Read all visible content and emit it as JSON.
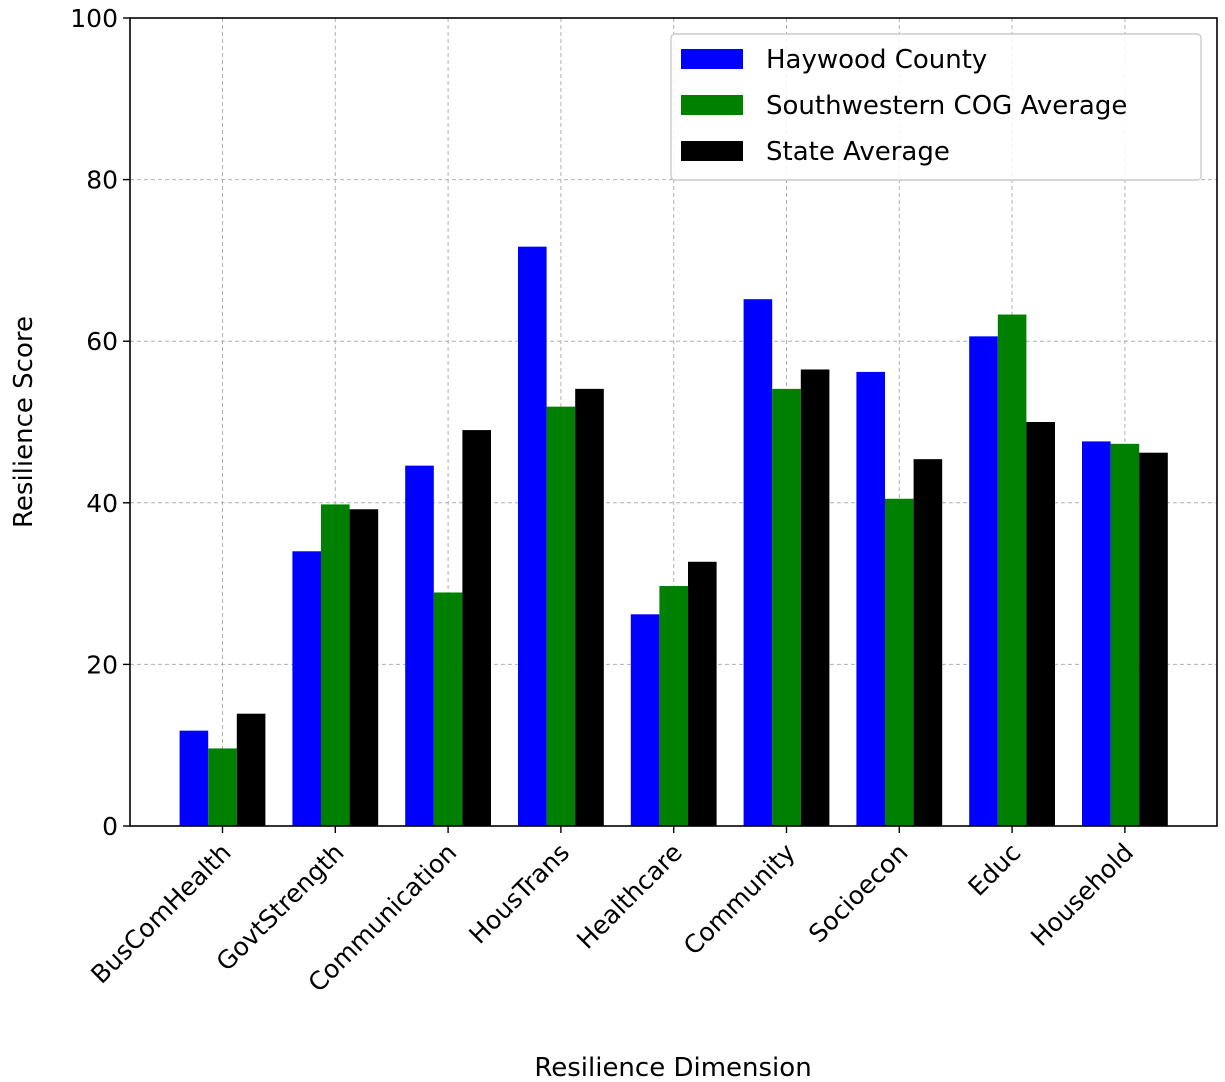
{
  "chart_data": {
    "type": "bar",
    "title": "",
    "xlabel": "Resilience Dimension",
    "ylabel": "Resilience Score",
    "ylim": [
      0,
      100
    ],
    "yticks": [
      "0",
      "20",
      "40",
      "60",
      "80",
      "100"
    ],
    "grid": true,
    "legend_position": "top-right",
    "categories": [
      "BusComHealth",
      "GovtStrength",
      "Communication",
      "HousTrans",
      "Healthcare",
      "Community",
      "Socioecon",
      "Educ",
      "Household"
    ],
    "series": [
      {
        "name": "Haywood County",
        "color": "#0000ff",
        "values": [
          11.8,
          34.0,
          44.6,
          71.7,
          26.2,
          65.2,
          56.2,
          60.6,
          47.6
        ]
      },
      {
        "name": "Southwestern COG Average",
        "color": "#008000",
        "values": [
          9.6,
          39.8,
          28.9,
          51.9,
          29.7,
          54.1,
          40.5,
          63.3,
          47.3
        ]
      },
      {
        "name": "State Average",
        "color": "#000000",
        "values": [
          13.9,
          39.2,
          49.0,
          54.1,
          32.7,
          56.5,
          45.4,
          50.0,
          46.2
        ]
      }
    ]
  }
}
